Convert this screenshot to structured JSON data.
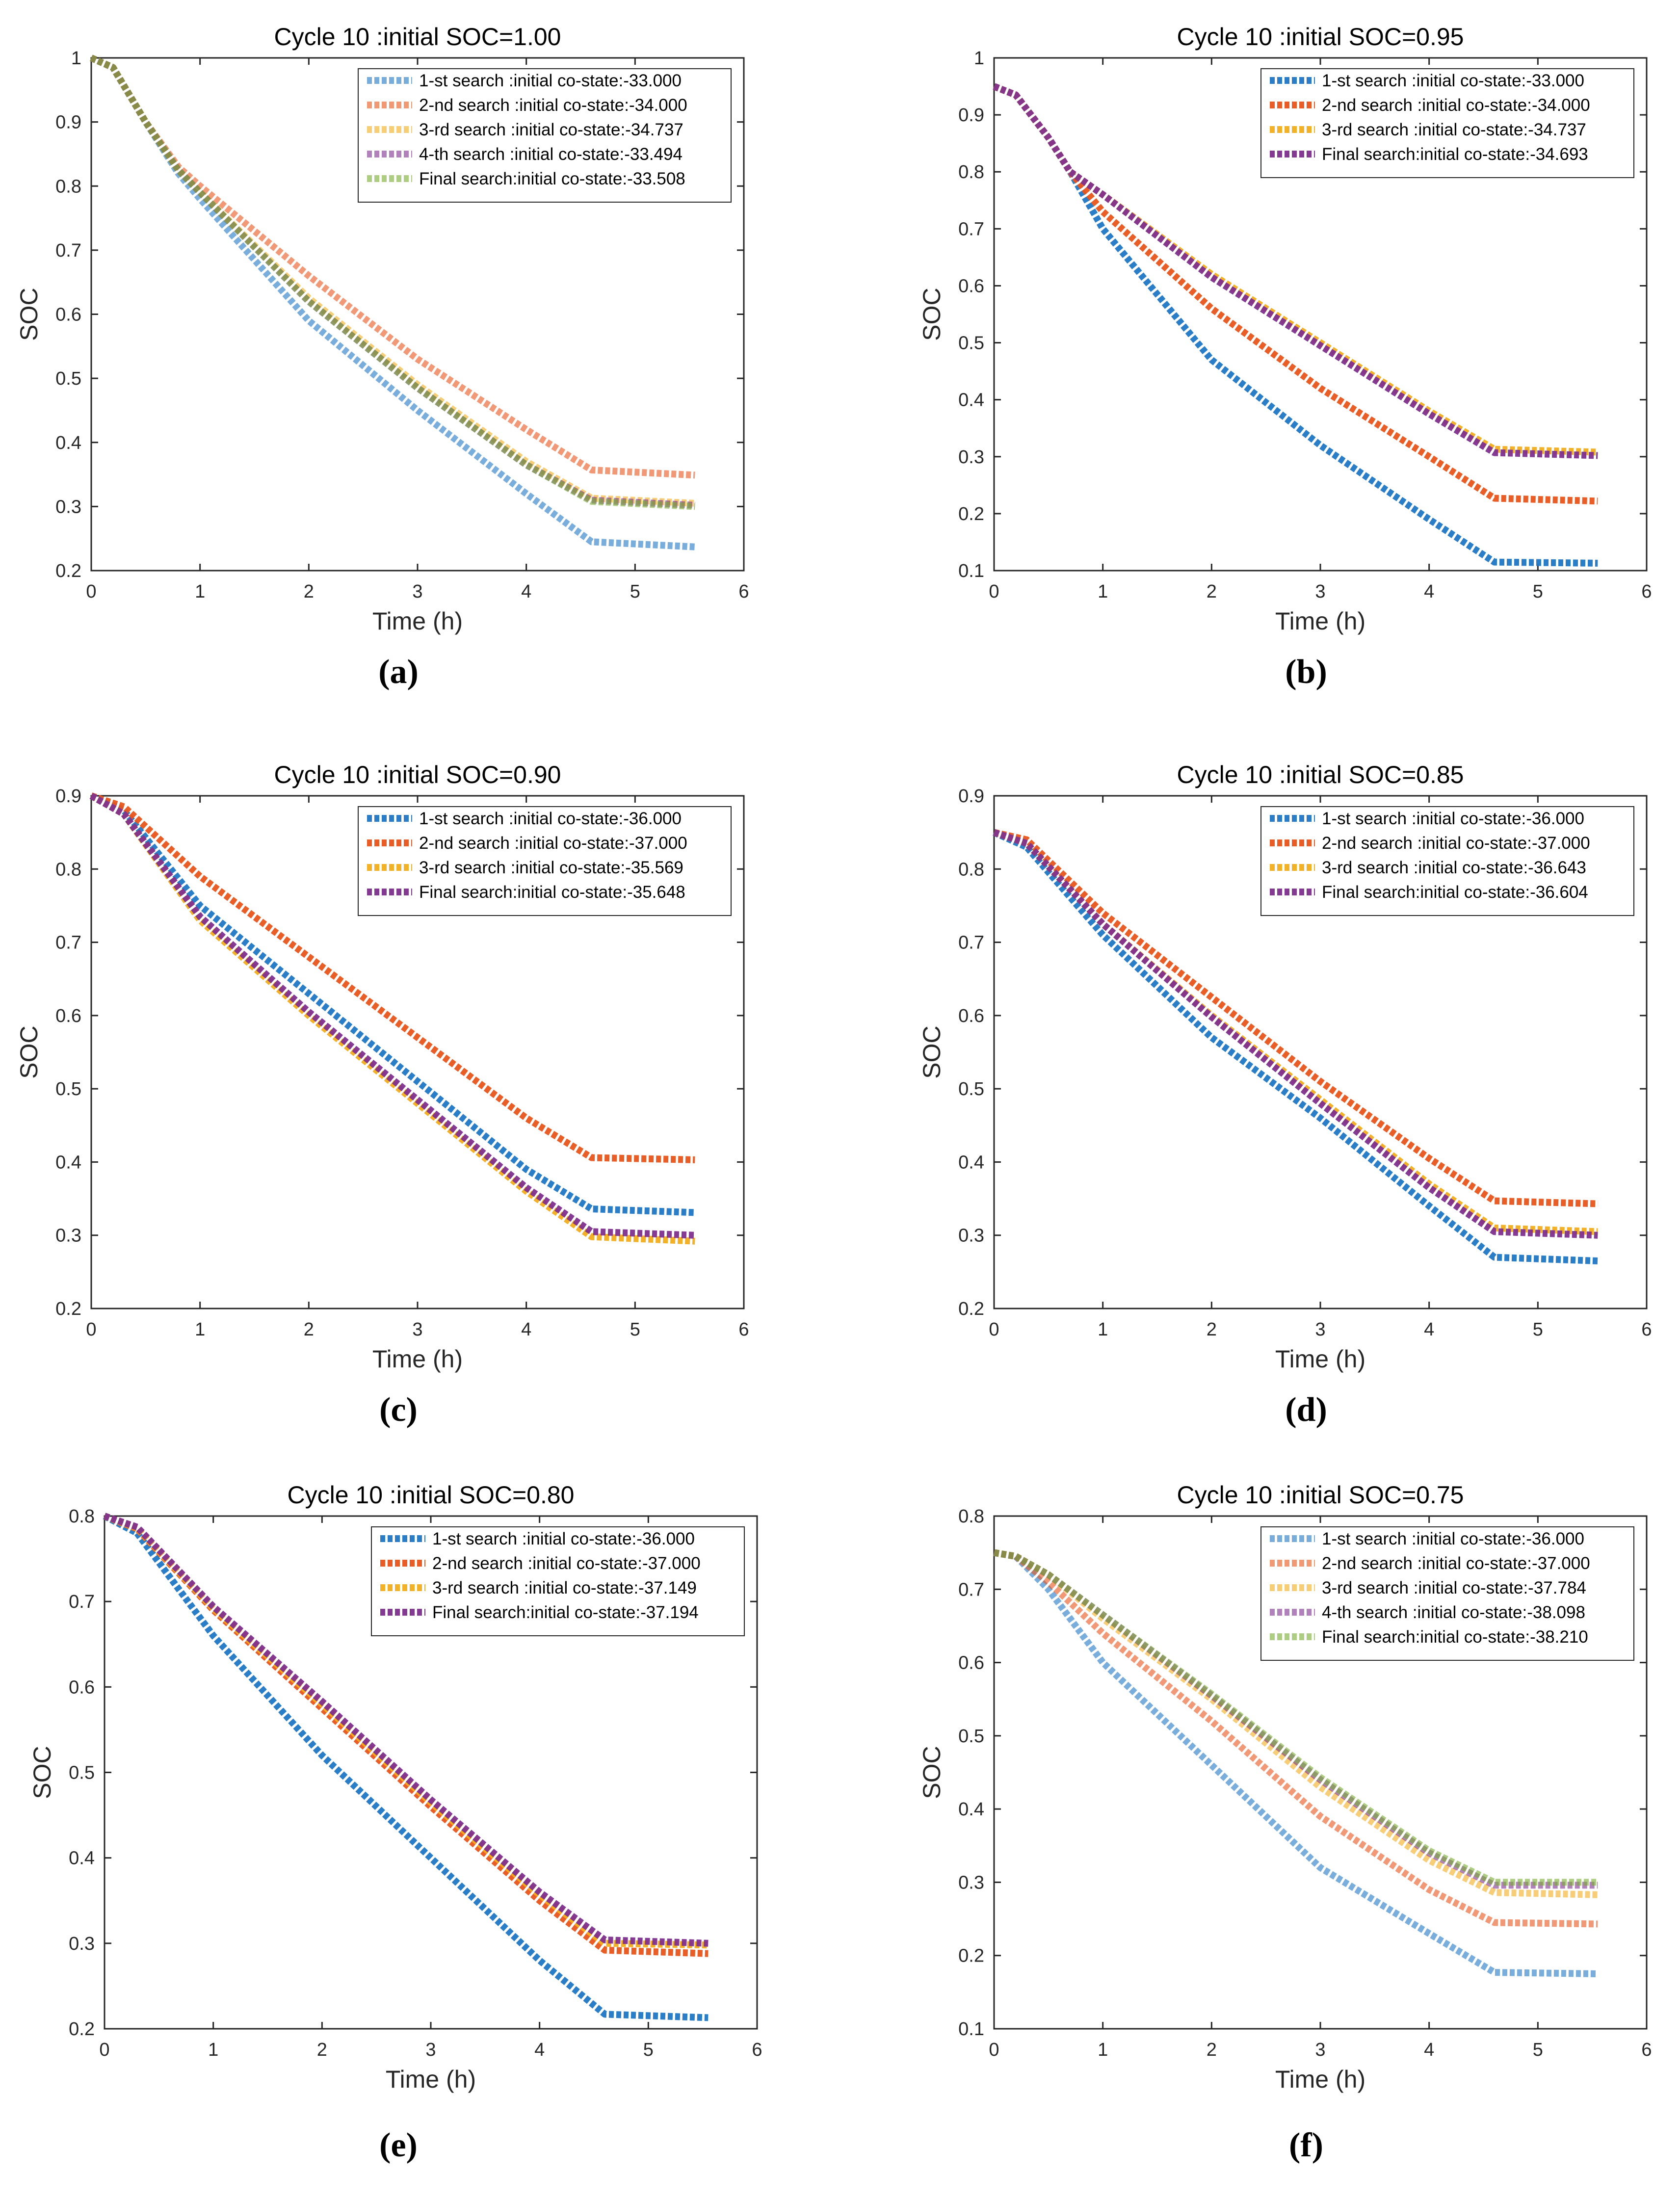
{
  "figure": {
    "panels": [
      "(a)",
      "(b)",
      "(c)",
      "(d)",
      "(e)",
      "(f)"
    ]
  },
  "colors": {
    "blue": "#1f77c4",
    "orange": "#e8541b",
    "yellow": "#f2ad1c",
    "purple": "#7e2f8e",
    "green": "#77ac30"
  },
  "chart_data": [
    {
      "type": "line",
      "title": "Cycle 10 :initial SOC=1.00",
      "xlabel": "Time (h)",
      "ylabel": "SOC",
      "xlim": [
        0,
        6
      ],
      "ylim": [
        0.2,
        1
      ],
      "xticks": [
        0,
        1,
        2,
        3,
        4,
        5,
        6
      ],
      "yticks": [
        0.2,
        0.3,
        0.4,
        0.5,
        0.6,
        0.7,
        0.8,
        0.9,
        1
      ],
      "ytick_labels": [
        "0.2",
        "0.3",
        "0.4",
        "0.5",
        "0.6",
        "0.7",
        "0.8",
        "0.9",
        "1"
      ],
      "legend_position": "top-right",
      "faded": true,
      "series": [
        {
          "name": "1-st  search :initial co-state:-33.000",
          "color": "#1f77c4",
          "x": [
            0,
            0.2,
            0.5,
            0.8,
            1,
            2,
            3,
            4,
            4.6,
            5.55
          ],
          "y": [
            1,
            0.985,
            0.9,
            0.82,
            0.78,
            0.59,
            0.45,
            0.32,
            0.245,
            0.237
          ]
        },
        {
          "name": "2-nd search :initial co-state:-34.000",
          "color": "#e8541b",
          "x": [
            0,
            0.2,
            0.5,
            0.8,
            1,
            2,
            3,
            4,
            4.6,
            5.55
          ],
          "y": [
            1,
            0.985,
            0.9,
            0.83,
            0.8,
            0.66,
            0.53,
            0.42,
            0.357,
            0.349
          ]
        },
        {
          "name": "3-rd  search :initial co-state:-34.737",
          "color": "#f2ad1c",
          "x": [
            0,
            0.2,
            0.5,
            0.8,
            1,
            2,
            3,
            4,
            4.6,
            5.55
          ],
          "y": [
            1,
            0.985,
            0.9,
            0.825,
            0.79,
            0.625,
            0.49,
            0.37,
            0.313,
            0.305
          ]
        },
        {
          "name": "4-th  search :initial co-state:-33.494",
          "color": "#7e2f8e",
          "x": [
            0,
            0.2,
            0.5,
            0.8,
            1,
            2,
            3,
            4,
            4.6,
            5.55
          ],
          "y": [
            1,
            0.985,
            0.9,
            0.825,
            0.79,
            0.62,
            0.485,
            0.365,
            0.31,
            0.302
          ]
        },
        {
          "name": "Final search:initial co-state:-33.508",
          "color": "#77ac30",
          "x": [
            0,
            0.2,
            0.5,
            0.8,
            1,
            2,
            3,
            4,
            4.6,
            5.55
          ],
          "y": [
            1,
            0.985,
            0.9,
            0.825,
            0.79,
            0.62,
            0.485,
            0.365,
            0.308,
            0.3
          ]
        }
      ]
    },
    {
      "type": "line",
      "title": "Cycle 10 :initial SOC=0.95",
      "xlabel": "Time (h)",
      "ylabel": "SOC",
      "xlim": [
        0,
        6
      ],
      "ylim": [
        0.1,
        1
      ],
      "xticks": [
        0,
        1,
        2,
        3,
        4,
        5,
        6
      ],
      "yticks": [
        0.1,
        0.2,
        0.3,
        0.4,
        0.5,
        0.6,
        0.7,
        0.8,
        0.9,
        1
      ],
      "ytick_labels": [
        "0.1",
        "0.2",
        "0.3",
        "0.4",
        "0.5",
        "0.6",
        "0.7",
        "0.8",
        "0.9",
        "1"
      ],
      "legend_position": "top-right",
      "faded": false,
      "series": [
        {
          "name": "1-st  search :initial co-state:-33.000",
          "color": "#1f77c4",
          "x": [
            0,
            0.2,
            0.5,
            0.7,
            1,
            2,
            3,
            4,
            4.6,
            5.55
          ],
          "y": [
            0.95,
            0.935,
            0.86,
            0.8,
            0.7,
            0.47,
            0.32,
            0.19,
            0.115,
            0.113
          ]
        },
        {
          "name": "2-nd search :initial co-state:-34.000",
          "color": "#e8541b",
          "x": [
            0,
            0.2,
            0.5,
            0.7,
            1,
            2,
            3,
            4,
            4.6,
            5.55
          ],
          "y": [
            0.95,
            0.935,
            0.86,
            0.8,
            0.73,
            0.56,
            0.42,
            0.3,
            0.227,
            0.222
          ]
        },
        {
          "name": "3-rd  search :initial co-state:-34.737",
          "color": "#f2ad1c",
          "x": [
            0,
            0.2,
            0.5,
            0.7,
            1,
            2,
            3,
            4,
            4.6,
            5.55
          ],
          "y": [
            0.95,
            0.935,
            0.86,
            0.8,
            0.76,
            0.62,
            0.5,
            0.38,
            0.313,
            0.308
          ]
        },
        {
          "name": "Final search:initial co-state:-34.693",
          "color": "#7e2f8e",
          "x": [
            0,
            0.2,
            0.5,
            0.7,
            1,
            2,
            3,
            4,
            4.6,
            5.55
          ],
          "y": [
            0.95,
            0.935,
            0.86,
            0.8,
            0.76,
            0.615,
            0.495,
            0.375,
            0.307,
            0.302
          ]
        }
      ]
    },
    {
      "type": "line",
      "title": "Cycle 10 :initial SOC=0.90",
      "xlabel": "Time (h)",
      "ylabel": "SOC",
      "xlim": [
        0,
        6
      ],
      "ylim": [
        0.2,
        0.9
      ],
      "xticks": [
        0,
        1,
        2,
        3,
        4,
        5,
        6
      ],
      "yticks": [
        0.2,
        0.3,
        0.4,
        0.5,
        0.6,
        0.7,
        0.8,
        0.9
      ],
      "ytick_labels": [
        "0.2",
        "0.3",
        "0.4",
        "0.5",
        "0.6",
        "0.7",
        "0.8",
        "0.9"
      ],
      "legend_position": "top-right",
      "faded": false,
      "series": [
        {
          "name": "1-st  search :initial co-state:-36.000",
          "color": "#1f77c4",
          "x": [
            0,
            0.3,
            1,
            2,
            3,
            4,
            4.6,
            5.55
          ],
          "y": [
            0.9,
            0.88,
            0.75,
            0.63,
            0.51,
            0.39,
            0.336,
            0.331
          ]
        },
        {
          "name": "2-nd search :initial co-state:-37.000",
          "color": "#e8541b",
          "x": [
            0,
            0.3,
            1,
            2,
            3,
            4,
            4.6,
            5.55
          ],
          "y": [
            0.9,
            0.885,
            0.79,
            0.68,
            0.57,
            0.46,
            0.406,
            0.403
          ]
        },
        {
          "name": "3-rd  search :initial co-state:-35.569",
          "color": "#f2ad1c",
          "x": [
            0,
            0.3,
            1,
            2,
            3,
            4,
            4.6,
            5.55
          ],
          "y": [
            0.9,
            0.875,
            0.73,
            0.6,
            0.48,
            0.36,
            0.298,
            0.292
          ]
        },
        {
          "name": "Final search:initial co-state:-35.648",
          "color": "#7e2f8e",
          "x": [
            0,
            0.3,
            1,
            2,
            3,
            4,
            4.6,
            5.55
          ],
          "y": [
            0.9,
            0.875,
            0.735,
            0.605,
            0.485,
            0.365,
            0.305,
            0.3
          ]
        }
      ]
    },
    {
      "type": "line",
      "title": "Cycle 10 :initial SOC=0.85",
      "xlabel": "Time (h)",
      "ylabel": "SOC",
      "xlim": [
        0,
        6
      ],
      "ylim": [
        0.2,
        0.9
      ],
      "xticks": [
        0,
        1,
        2,
        3,
        4,
        5,
        6
      ],
      "yticks": [
        0.2,
        0.3,
        0.4,
        0.5,
        0.6,
        0.7,
        0.8,
        0.9
      ],
      "ytick_labels": [
        "0.2",
        "0.3",
        "0.4",
        "0.5",
        "0.6",
        "0.7",
        "0.8",
        "0.9"
      ],
      "legend_position": "top-right",
      "faded": false,
      "series": [
        {
          "name": "1-st  search :initial co-state:-36.000",
          "color": "#1f77c4",
          "x": [
            0,
            0.3,
            1,
            2,
            3,
            4,
            4.6,
            5.55
          ],
          "y": [
            0.85,
            0.83,
            0.71,
            0.57,
            0.46,
            0.34,
            0.27,
            0.265
          ]
        },
        {
          "name": "2-nd search :initial co-state:-37.000",
          "color": "#e8541b",
          "x": [
            0,
            0.3,
            1,
            2,
            3,
            4,
            4.6,
            5.55
          ],
          "y": [
            0.85,
            0.84,
            0.74,
            0.625,
            0.51,
            0.405,
            0.347,
            0.343
          ]
        },
        {
          "name": "3-rd  search :initial co-state:-36.643",
          "color": "#f2ad1c",
          "x": [
            0,
            0.3,
            1,
            2,
            3,
            4,
            4.6,
            5.55
          ],
          "y": [
            0.85,
            0.835,
            0.725,
            0.6,
            0.485,
            0.37,
            0.31,
            0.305
          ]
        },
        {
          "name": "Final search:initial co-state:-36.604",
          "color": "#7e2f8e",
          "x": [
            0,
            0.3,
            1,
            2,
            3,
            4,
            4.6,
            5.55
          ],
          "y": [
            0.85,
            0.835,
            0.725,
            0.598,
            0.48,
            0.365,
            0.305,
            0.3
          ]
        }
      ]
    },
    {
      "type": "line",
      "title": "Cycle 10 :initial SOC=0.80",
      "xlabel": "Time (h)",
      "ylabel": "SOC",
      "xlim": [
        0,
        6
      ],
      "ylim": [
        0.2,
        0.8
      ],
      "xticks": [
        0,
        1,
        2,
        3,
        4,
        5,
        6
      ],
      "yticks": [
        0.2,
        0.3,
        0.4,
        0.5,
        0.6,
        0.7,
        0.8
      ],
      "ytick_labels": [
        "0.2",
        "0.3",
        "0.4",
        "0.5",
        "0.6",
        "0.7",
        "0.8"
      ],
      "legend_position": "top-right",
      "faded": false,
      "series": [
        {
          "name": "1-st  search :initial co-state:-36.000",
          "color": "#1f77c4",
          "x": [
            0,
            0.3,
            1,
            2,
            3,
            4,
            4.6,
            5.55
          ],
          "y": [
            0.8,
            0.78,
            0.66,
            0.52,
            0.4,
            0.28,
            0.217,
            0.213
          ]
        },
        {
          "name": "2-nd search :initial co-state:-37.000",
          "color": "#e8541b",
          "x": [
            0,
            0.3,
            1,
            2,
            3,
            4,
            4.6,
            5.55
          ],
          "y": [
            0.8,
            0.785,
            0.69,
            0.575,
            0.46,
            0.35,
            0.292,
            0.288
          ]
        },
        {
          "name": "3-rd  search :initial co-state:-37.149",
          "color": "#f2ad1c",
          "x": [
            0,
            0.3,
            1,
            2,
            3,
            4,
            4.6,
            5.55
          ],
          "y": [
            0.8,
            0.786,
            0.692,
            0.58,
            0.465,
            0.357,
            0.3,
            0.298
          ]
        },
        {
          "name": "Final search:initial co-state:-37.194",
          "color": "#7e2f8e",
          "x": [
            0,
            0.3,
            1,
            2,
            3,
            4,
            4.6,
            5.55
          ],
          "y": [
            0.8,
            0.787,
            0.694,
            0.583,
            0.468,
            0.36,
            0.304,
            0.3
          ]
        }
      ]
    },
    {
      "type": "line",
      "title": "Cycle 10 :initial SOC=0.75",
      "xlabel": "Time (h)",
      "ylabel": "SOC",
      "xlim": [
        0,
        6
      ],
      "ylim": [
        0.1,
        0.8
      ],
      "xticks": [
        0,
        1,
        2,
        3,
        4,
        5,
        6
      ],
      "yticks": [
        0.1,
        0.2,
        0.3,
        0.4,
        0.5,
        0.6,
        0.7,
        0.8
      ],
      "ytick_labels": [
        "0.1",
        "0.2",
        "0.3",
        "0.4",
        "0.5",
        "0.6",
        "0.7",
        "0.8"
      ],
      "legend_position": "top-right",
      "faded": true,
      "series": [
        {
          "name": "1-st  search :initial co-state:-36.000",
          "color": "#1f77c4",
          "x": [
            0,
            0.2,
            0.5,
            1,
            2,
            3,
            4,
            4.6,
            5.55
          ],
          "y": [
            0.75,
            0.745,
            0.7,
            0.6,
            0.46,
            0.32,
            0.23,
            0.177,
            0.175
          ]
        },
        {
          "name": "2-nd search :initial co-state:-37.000",
          "color": "#e8541b",
          "x": [
            0,
            0.2,
            0.5,
            1,
            2,
            3,
            4,
            4.6,
            5.55
          ],
          "y": [
            0.75,
            0.745,
            0.71,
            0.64,
            0.52,
            0.39,
            0.29,
            0.245,
            0.243
          ]
        },
        {
          "name": "3-rd  search :initial co-state:-37.784",
          "color": "#f2ad1c",
          "x": [
            0,
            0.2,
            0.5,
            1,
            2,
            3,
            4,
            4.6,
            5.55
          ],
          "y": [
            0.75,
            0.745,
            0.72,
            0.66,
            0.55,
            0.43,
            0.33,
            0.286,
            0.283
          ]
        },
        {
          "name": "4-th  search :initial co-state:-38.098",
          "color": "#7e2f8e",
          "x": [
            0,
            0.2,
            0.5,
            1,
            2,
            3,
            4,
            4.6,
            5.55
          ],
          "y": [
            0.75,
            0.745,
            0.72,
            0.665,
            0.555,
            0.44,
            0.34,
            0.296,
            0.296
          ]
        },
        {
          "name": "Final search:initial co-state:-38.210",
          "color": "#77ac30",
          "x": [
            0,
            0.2,
            0.5,
            1,
            2,
            3,
            4,
            4.6,
            5.55
          ],
          "y": [
            0.75,
            0.745,
            0.72,
            0.665,
            0.557,
            0.443,
            0.343,
            0.3,
            0.3
          ]
        }
      ]
    }
  ]
}
